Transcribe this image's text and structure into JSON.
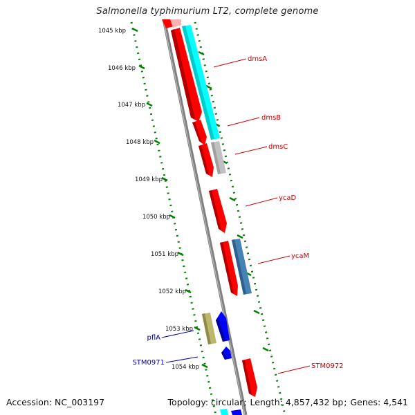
{
  "title": "Salmonella typhimurium LT2, complete genome",
  "footer": {
    "accession_label": "Accession:",
    "accession_value": "NC_003197",
    "topology_label": "Topology:",
    "topology_value": "circular",
    "length_label": "Length:",
    "length_value": "4,857,432 bp",
    "genes_label": "Genes:",
    "genes_value": "4,541"
  },
  "kbp_ticks": [
    "1045 kbp",
    "1046 kbp",
    "1047 kbp",
    "1048 kbp",
    "1049 kbp",
    "1050 kbp",
    "1051 kbp",
    "1052 kbp",
    "1053 kbp",
    "1054 kbp"
  ],
  "genes": [
    {
      "name": "dmsA",
      "strand": "forward",
      "color": "#cc0000"
    },
    {
      "name": "dmsB",
      "strand": "forward",
      "color": "#cc0000"
    },
    {
      "name": "dmsC",
      "strand": "forward",
      "color": "#cc0000"
    },
    {
      "name": "ycaD",
      "strand": "forward",
      "color": "#cc0000"
    },
    {
      "name": "ycaM",
      "strand": "forward",
      "color": "#cc0000"
    },
    {
      "name": "pflA",
      "strand": "reverse",
      "color": "#0000aa"
    },
    {
      "name": "STM0971",
      "strand": "reverse",
      "color": "#0000aa"
    },
    {
      "name": "STM0972",
      "strand": "forward",
      "color": "#cc0000"
    }
  ],
  "colors": {
    "forward_cds": "#ff0000",
    "reverse_cds": "#0000ff",
    "cog_cyan": "#00ffff",
    "cog_gray": "#c0c0c0",
    "cog_steelblue": "#4682b4",
    "cog_khaki": "#bdb76b",
    "backbone": "#808080",
    "tick_green": "#008000"
  }
}
